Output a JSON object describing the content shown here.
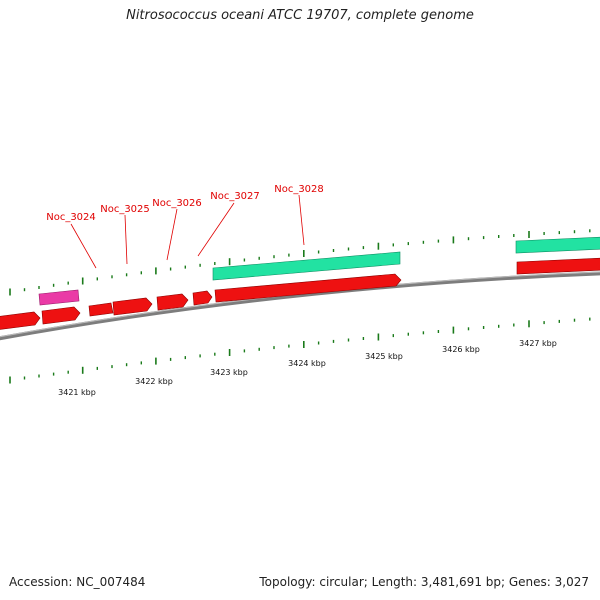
{
  "header": {
    "title": "Nitrosococcus oceani ATCC 19707, complete genome"
  },
  "footer": {
    "accession": "Accession: NC_007484",
    "summary": "Topology: circular; Length: 3,481,691 bp; Genes: 3,027"
  },
  "genome_map": {
    "colors": {
      "backbone": "#8a8a8a",
      "forward_cds": "#21e6a6",
      "reverse_cds": "#ee1111",
      "rna": "#ee33aa",
      "tick": "#1a7a1a",
      "label": "#e00000"
    },
    "scale_labels": [
      "3421 kbp",
      "3422 kbp",
      "3423 kbp",
      "3424 kbp",
      "3425 kbp",
      "3426 kbp",
      "3427 kbp"
    ],
    "gene_labels": [
      "Noc_3024",
      "Noc_3025",
      "Noc_3026",
      "Noc_3027",
      "Noc_3028"
    ]
  }
}
